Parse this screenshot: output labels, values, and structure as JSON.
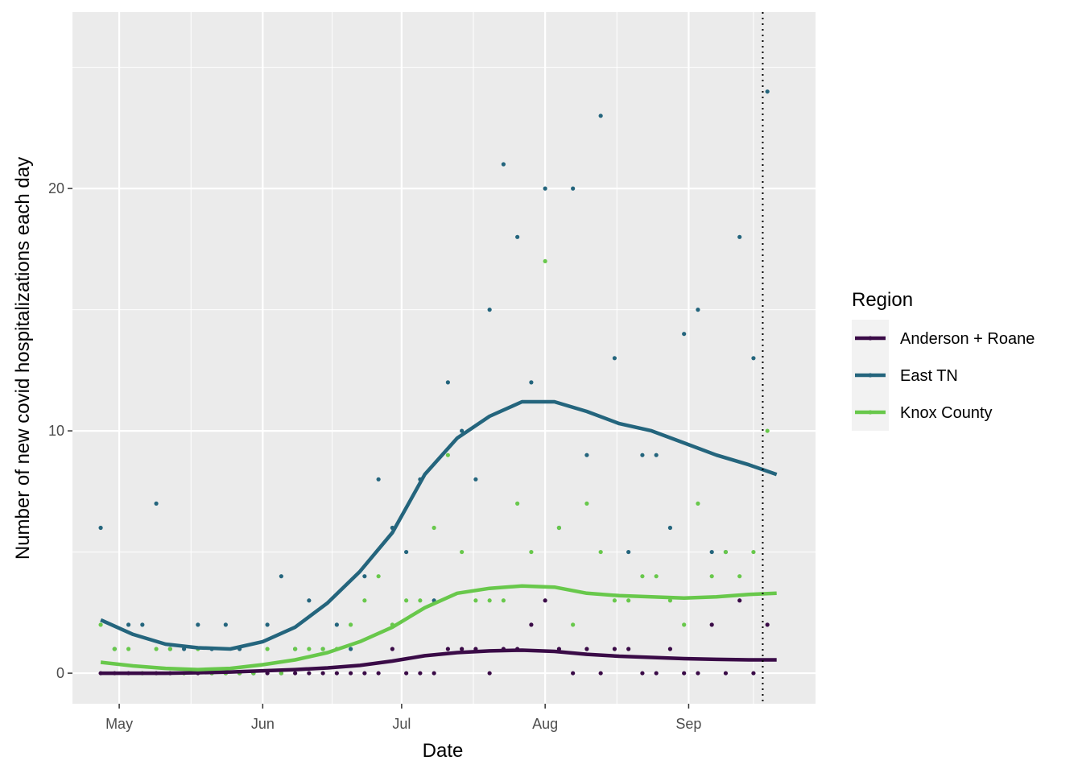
{
  "chart_data": {
    "type": "scatter-smooth",
    "x_label": "Date",
    "y_label": "Number of new covid hospitalizations each day",
    "legend_title": "Region",
    "legend_position": "right",
    "grid": true,
    "background": "#ebebeb",
    "xlim": [
      110.9,
      271.4
    ],
    "xticks": [
      {
        "value": 121,
        "label": "May"
      },
      {
        "value": 152,
        "label": "Jun"
      },
      {
        "value": 182,
        "label": "Jul"
      },
      {
        "value": 213,
        "label": "Aug"
      },
      {
        "value": 244,
        "label": "Sep"
      }
    ],
    "x_minor_grid": [
      136.5,
      167,
      197.5,
      228.5,
      258
    ],
    "ylim": [
      -1.26,
      27.28
    ],
    "yticks": [
      0,
      10,
      20
    ],
    "y_minor_grid": [
      5,
      15,
      25
    ],
    "vline": 260,
    "points_x": [
      117,
      120,
      123,
      126,
      129,
      132,
      135,
      138,
      141,
      144,
      147,
      150,
      153,
      156,
      159,
      162,
      165,
      168,
      171,
      174,
      177,
      180,
      183,
      186,
      189,
      192,
      195,
      198,
      201,
      204,
      207,
      210,
      213,
      216,
      219,
      222,
      225,
      228,
      231,
      234,
      237,
      240,
      243,
      246,
      249,
      252,
      255,
      258,
      261
    ],
    "smooth_x": [
      117,
      124,
      131,
      138,
      145,
      152,
      159,
      166,
      173,
      180,
      187,
      194,
      201,
      208,
      215,
      222,
      229,
      236,
      243,
      250,
      257,
      263
    ],
    "series": [
      {
        "name": "Anderson + Roane",
        "color": "#3a0b47",
        "points": [
          0,
          0,
          0,
          0,
          0,
          0,
          0,
          0,
          0,
          0,
          0,
          0,
          0,
          0,
          0,
          0,
          0,
          0,
          0,
          0,
          0,
          1,
          0,
          0,
          0,
          1,
          1,
          1,
          0,
          1,
          1,
          2,
          3,
          1,
          0,
          1,
          0,
          1,
          1,
          0,
          0,
          1,
          0,
          0,
          2,
          0,
          3,
          0,
          2
        ],
        "smooth": [
          0,
          0,
          0,
          0.02,
          0.05,
          0.1,
          0.15,
          0.22,
          0.32,
          0.5,
          0.72,
          0.85,
          0.92,
          0.95,
          0.9,
          0.78,
          0.7,
          0.65,
          0.6,
          0.57,
          0.55,
          0.55
        ]
      },
      {
        "name": "East TN",
        "color": "#24657d",
        "points": [
          6,
          1,
          2,
          2,
          7,
          1,
          1,
          2,
          1,
          2,
          1,
          0,
          2,
          4,
          1,
          3,
          1,
          2,
          1,
          4,
          8,
          6,
          5,
          8,
          3,
          12,
          10,
          8,
          15,
          21,
          18,
          12,
          20,
          6,
          20,
          9,
          23,
          13,
          5,
          9,
          9,
          6,
          14,
          15,
          5,
          5,
          18,
          13,
          24
        ],
        "smooth": [
          2.2,
          1.6,
          1.2,
          1.05,
          1.0,
          1.3,
          1.9,
          2.9,
          4.2,
          5.8,
          8.2,
          9.7,
          10.6,
          11.2,
          11.2,
          10.8,
          10.3,
          10.0,
          9.5,
          9.0,
          8.6,
          8.2
        ]
      },
      {
        "name": "Knox County",
        "color": "#68c84b",
        "points": [
          2,
          1,
          1,
          0,
          1,
          1,
          0,
          1,
          0,
          0,
          0,
          0,
          1,
          0,
          1,
          1,
          1,
          1,
          2,
          3,
          4,
          2,
          3,
          3,
          6,
          9,
          5,
          3,
          3,
          3,
          7,
          5,
          17,
          6,
          2,
          7,
          5,
          3,
          3,
          4,
          4,
          3,
          2,
          7,
          4,
          5,
          4,
          5,
          10
        ],
        "smooth": [
          0.45,
          0.3,
          0.2,
          0.15,
          0.2,
          0.35,
          0.55,
          0.85,
          1.3,
          1.9,
          2.7,
          3.3,
          3.5,
          3.6,
          3.55,
          3.3,
          3.2,
          3.15,
          3.1,
          3.15,
          3.25,
          3.3
        ]
      }
    ]
  }
}
